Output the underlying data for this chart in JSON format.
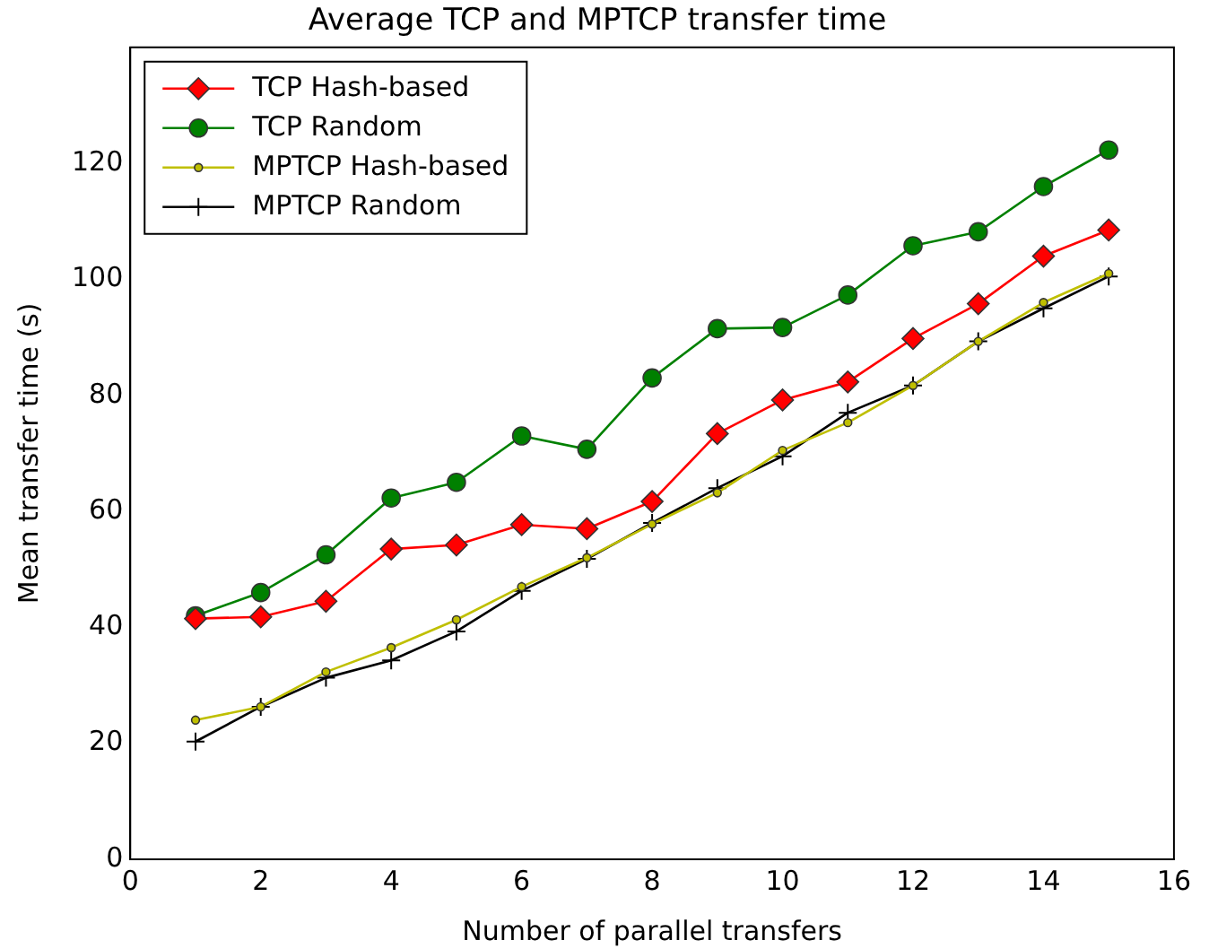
{
  "chart_data": {
    "type": "line",
    "title": "Average TCP and MPTCP transfer time",
    "xlabel": "Number of parallel transfers",
    "ylabel": "Mean transfer time (s)",
    "x": [
      1,
      2,
      3,
      4,
      5,
      6,
      7,
      8,
      9,
      10,
      11,
      12,
      13,
      14,
      15
    ],
    "xlim": [
      0,
      16
    ],
    "xticks": [
      0,
      2,
      4,
      6,
      8,
      10,
      12,
      14,
      16
    ],
    "ylim": [
      0,
      140
    ],
    "yticks": [
      0,
      20,
      40,
      60,
      80,
      100,
      120
    ],
    "grid": false,
    "legend": "top left",
    "series": [
      {
        "name": "TCP Hash-based",
        "color": "#ff0000",
        "marker": "diamond",
        "values": [
          41.5,
          41.8,
          44.5,
          53.5,
          54.2,
          57.7,
          57,
          61.7,
          73.4,
          79.2,
          82.3,
          89.8,
          95.8,
          104,
          108.5
        ]
      },
      {
        "name": "TCP Random",
        "color": "#008000",
        "marker": "circle",
        "values": [
          42,
          46,
          52.5,
          62.3,
          65,
          73,
          70.7,
          83,
          91.5,
          91.7,
          97.3,
          105.8,
          108.2,
          116,
          122.3
        ]
      },
      {
        "name": "MPTCP Hash-based",
        "color": "#bfbf00",
        "marker": "point",
        "values": [
          24,
          26.3,
          32.3,
          36.5,
          41.3,
          47,
          52,
          57.8,
          63.2,
          70.5,
          75.3,
          81.7,
          89.3,
          96,
          101
        ]
      },
      {
        "name": "MPTCP Random",
        "color": "#000000",
        "marker": "cross",
        "values": [
          20.3,
          26.3,
          31.3,
          34.3,
          39.3,
          46.3,
          51.8,
          58,
          64,
          69.5,
          77,
          81.7,
          89.3,
          95,
          100.5
        ]
      }
    ]
  }
}
